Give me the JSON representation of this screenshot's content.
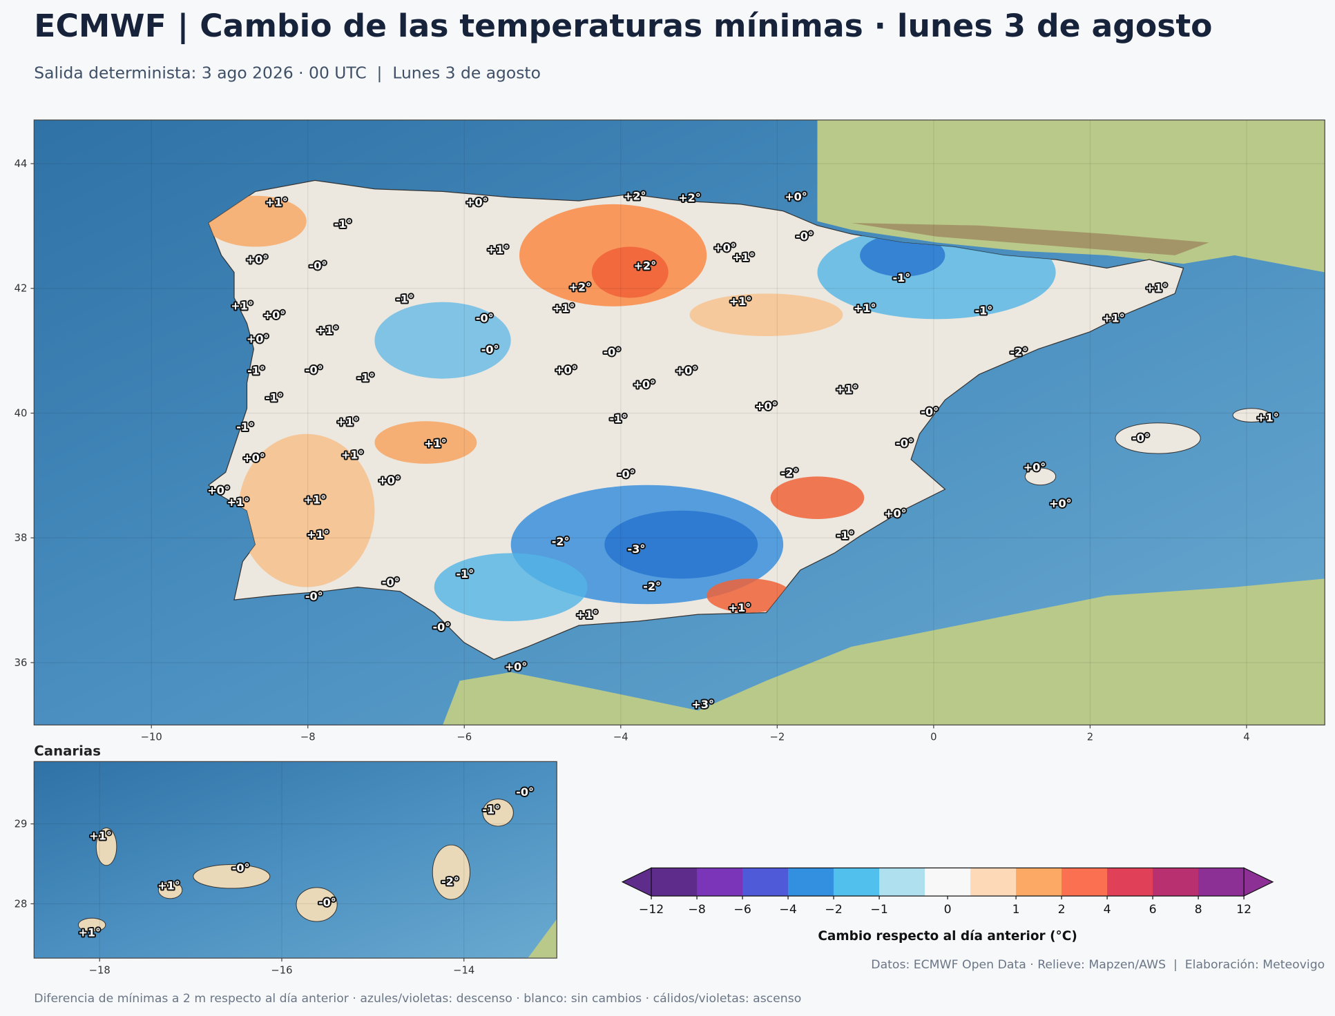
{
  "header": {
    "title": "ECMWF | Cambio de las temperaturas mínimas · lunes 3 de agosto",
    "subtitle": "Salida determinista: 3 ago 2026 · 00 UTC  |  Lunes 3 de agosto"
  },
  "main_map": {
    "xlim": [
      -11.5,
      5.0
    ],
    "ylim": [
      35.0,
      44.7
    ],
    "xticks": [
      {
        "value": -10,
        "label": "−10"
      },
      {
        "value": -8,
        "label": "−8"
      },
      {
        "value": -6,
        "label": "−6"
      },
      {
        "value": -4,
        "label": "−4"
      },
      {
        "value": -2,
        "label": "−2"
      },
      0,
      2,
      4
    ],
    "yticks": [
      36,
      38,
      40,
      42,
      44
    ],
    "labels": [
      {
        "text": "+1°",
        "lon": -8.4,
        "lat": 43.37
      },
      {
        "text": "-1°",
        "lon": -7.55,
        "lat": 43.02
      },
      {
        "text": "+0°",
        "lon": -5.84,
        "lat": 43.37
      },
      {
        "text": "+2°",
        "lon": -3.82,
        "lat": 43.47
      },
      {
        "text": "+2°",
        "lon": -3.12,
        "lat": 43.44
      },
      {
        "text": "+0°",
        "lon": -1.76,
        "lat": 43.46
      },
      {
        "text": "-0°",
        "lon": -1.65,
        "lat": 42.83
      },
      {
        "text": "+0°",
        "lon": -8.65,
        "lat": 42.45
      },
      {
        "text": "-0°",
        "lon": -7.87,
        "lat": 42.35
      },
      {
        "text": "+1°",
        "lon": -5.57,
        "lat": 42.61
      },
      {
        "text": "+0°",
        "lon": -2.67,
        "lat": 42.64
      },
      {
        "text": "+1°",
        "lon": -2.43,
        "lat": 42.49
      },
      {
        "text": "+2°",
        "lon": -3.69,
        "lat": 42.35
      },
      {
        "text": "+2°",
        "lon": -4.52,
        "lat": 42.01
      },
      {
        "text": "-1°",
        "lon": -0.41,
        "lat": 42.16
      },
      {
        "text": "+1°",
        "lon": 2.85,
        "lat": 42.0
      },
      {
        "text": "+1°",
        "lon": -8.84,
        "lat": 41.71
      },
      {
        "text": "+0°",
        "lon": -8.43,
        "lat": 41.56
      },
      {
        "text": "-1°",
        "lon": -6.76,
        "lat": 41.82
      },
      {
        "text": "+1°",
        "lon": -4.73,
        "lat": 41.67
      },
      {
        "text": "+1°",
        "lon": -2.47,
        "lat": 41.78
      },
      {
        "text": "+1°",
        "lon": -0.88,
        "lat": 41.67
      },
      {
        "text": "-1°",
        "lon": 0.64,
        "lat": 41.63
      },
      {
        "text": "+1°",
        "lon": 2.3,
        "lat": 41.51
      },
      {
        "text": "-0°",
        "lon": -5.74,
        "lat": 41.51
      },
      {
        "text": "+1°",
        "lon": -7.75,
        "lat": 41.32
      },
      {
        "text": "+0°",
        "lon": -8.64,
        "lat": 41.18
      },
      {
        "text": "-0°",
        "lon": -5.67,
        "lat": 41.01
      },
      {
        "text": "-0°",
        "lon": -4.11,
        "lat": 40.97
      },
      {
        "text": "-2°",
        "lon": 1.09,
        "lat": 40.97
      },
      {
        "text": "-1°",
        "lon": -8.66,
        "lat": 40.67
      },
      {
        "text": "-0°",
        "lon": -7.92,
        "lat": 40.68
      },
      {
        "text": "-1°",
        "lon": -7.26,
        "lat": 40.56
      },
      {
        "text": "+0°",
        "lon": -4.7,
        "lat": 40.68
      },
      {
        "text": "+0°",
        "lon": -3.16,
        "lat": 40.67
      },
      {
        "text": "+0°",
        "lon": -3.7,
        "lat": 40.45
      },
      {
        "text": "-1°",
        "lon": -8.43,
        "lat": 40.24
      },
      {
        "text": "+1°",
        "lon": -1.11,
        "lat": 40.37
      },
      {
        "text": "+0°",
        "lon": -2.14,
        "lat": 40.1
      },
      {
        "text": "-0°",
        "lon": -0.05,
        "lat": 40.01
      },
      {
        "text": "+1°",
        "lon": 4.27,
        "lat": 39.92
      },
      {
        "text": "-1°",
        "lon": -8.8,
        "lat": 39.77
      },
      {
        "text": "+1°",
        "lon": -7.49,
        "lat": 39.85
      },
      {
        "text": "-1°",
        "lon": -4.03,
        "lat": 39.9
      },
      {
        "text": "-0°",
        "lon": -0.37,
        "lat": 39.51
      },
      {
        "text": "-0°",
        "lon": 2.65,
        "lat": 39.59
      },
      {
        "text": "+1°",
        "lon": -6.37,
        "lat": 39.5
      },
      {
        "text": "+1°",
        "lon": -7.43,
        "lat": 39.32
      },
      {
        "text": "+0°",
        "lon": -8.69,
        "lat": 39.27
      },
      {
        "text": "+0°",
        "lon": 1.29,
        "lat": 39.12
      },
      {
        "text": "-2°",
        "lon": -1.84,
        "lat": 39.03
      },
      {
        "text": "-0°",
        "lon": -3.93,
        "lat": 39.01
      },
      {
        "text": "+0°",
        "lon": -6.96,
        "lat": 38.91
      },
      {
        "text": "+0°",
        "lon": -9.14,
        "lat": 38.75
      },
      {
        "text": "+1°",
        "lon": -8.89,
        "lat": 38.56
      },
      {
        "text": "+1°",
        "lon": -7.91,
        "lat": 38.6
      },
      {
        "text": "+0°",
        "lon": 1.62,
        "lat": 38.54
      },
      {
        "text": "+0°",
        "lon": -0.49,
        "lat": 38.38
      },
      {
        "text": "+1°",
        "lon": -7.87,
        "lat": 38.04
      },
      {
        "text": "-1°",
        "lon": -1.13,
        "lat": 38.03
      },
      {
        "text": "-2°",
        "lon": -4.77,
        "lat": 37.93
      },
      {
        "text": "-3°",
        "lon": -3.8,
        "lat": 37.81
      },
      {
        "text": "-1°",
        "lon": -5.99,
        "lat": 37.41
      },
      {
        "text": "-0°",
        "lon": -6.94,
        "lat": 37.28
      },
      {
        "text": "-2°",
        "lon": -3.6,
        "lat": 37.21
      },
      {
        "text": "-0°",
        "lon": -7.92,
        "lat": 37.05
      },
      {
        "text": "+1°",
        "lon": -2.48,
        "lat": 36.87
      },
      {
        "text": "+1°",
        "lon": -4.43,
        "lat": 36.76
      },
      {
        "text": "-0°",
        "lon": -6.29,
        "lat": 36.56
      },
      {
        "text": "+0°",
        "lon": -5.34,
        "lat": 35.92
      },
      {
        "text": "+3°",
        "lon": -2.95,
        "lat": 35.32
      }
    ]
  },
  "inset": {
    "title": "Canarias",
    "xlim": [
      -18.72,
      -12.98
    ],
    "ylim": [
      27.32,
      29.78
    ],
    "xticks": [
      {
        "value": -18,
        "label": "−18"
      },
      {
        "value": -16,
        "label": "−16"
      },
      {
        "value": -14,
        "label": "−14"
      }
    ],
    "yticks": [
      28,
      29
    ],
    "labels": [
      {
        "text": "+1°",
        "lon": -17.99,
        "lat": 28.84
      },
      {
        "text": "-0°",
        "lon": -13.33,
        "lat": 29.39
      },
      {
        "text": "-1°",
        "lon": -13.7,
        "lat": 29.17
      },
      {
        "text": "-0°",
        "lon": -16.45,
        "lat": 28.44
      },
      {
        "text": "+1°",
        "lon": -17.24,
        "lat": 28.22
      },
      {
        "text": "-2°",
        "lon": -14.15,
        "lat": 28.27
      },
      {
        "text": "-0°",
        "lon": -15.5,
        "lat": 28.01
      },
      {
        "text": "+1°",
        "lon": -18.11,
        "lat": 27.63
      }
    ]
  },
  "colorbar": {
    "label": "Cambio respecto al día anterior (°C)",
    "boundaries": [
      -12,
      -8,
      -6,
      -4,
      -2,
      -1,
      -0.5,
      0.5,
      1,
      2,
      4,
      6,
      8,
      12
    ],
    "colors": [
      "#5e2d8c",
      "#7b35b8",
      "#4f5ad8",
      "#3390e0",
      "#52c0ec",
      "#aee0f0",
      "#f8f8f8",
      "#fed9b8",
      "#fca965",
      "#fb7050",
      "#e04058",
      "#b83070",
      "#8c3096"
    ],
    "under_color": "#5e2d8c",
    "over_color": "#8c3096",
    "ticks": [
      {
        "value": -12,
        "label": "−12"
      },
      {
        "value": -8,
        "label": "−8"
      },
      {
        "value": -6,
        "label": "−6"
      },
      {
        "value": -4,
        "label": "−4"
      },
      {
        "value": -2,
        "label": "−2"
      },
      {
        "value": -1,
        "label": "−1"
      },
      0,
      1,
      2,
      4,
      6,
      8,
      12
    ]
  },
  "footer": {
    "credits": "Datos: ECMWF Open Data · Relieve: Mapzen/AWS  |  Elaboración: Meteovigo",
    "note": "Diferencia de mínimas a 2 m respecto al día anterior · azules/violetas: descenso · blanco: sin cambios · cálidos/violetas: ascenso"
  }
}
